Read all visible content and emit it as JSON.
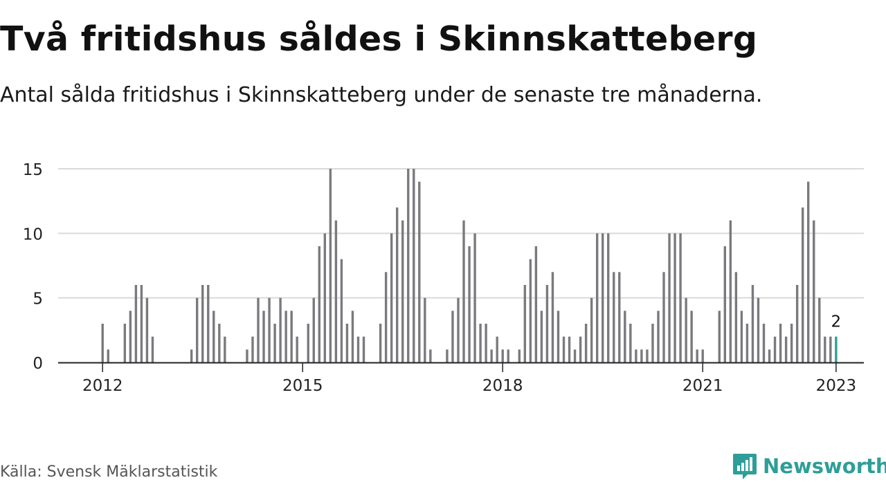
{
  "header": {
    "title": "Två fritidshus såldes i Skinnskatteberg",
    "subtitle": "Antal sålda fritidshus i Skinnskatteberg under de senaste tre månaderna."
  },
  "footer": {
    "source": "Källa: Svensk Mäklarstatistik",
    "brand": "Newsworthy"
  },
  "colors": {
    "bar": "#7a7a7e",
    "highlight": "#2aa198",
    "grid": "#d9d9d9",
    "axis": "#222222",
    "brand": "#2e9e98"
  },
  "chart_data": {
    "type": "bar",
    "ylim": [
      0,
      15
    ],
    "yticks": [
      0,
      5,
      10,
      15
    ],
    "grid": true,
    "x_ticks": [
      {
        "label": "2012",
        "x": "2012-01"
      },
      {
        "label": "2015",
        "x": "2015-01"
      },
      {
        "label": "2018",
        "x": "2018-01"
      },
      {
        "label": "2021",
        "x": "2021-01"
      },
      {
        "label": "2023",
        "x": "2023-01"
      }
    ],
    "xlim": [
      "2011-05",
      "2023-06"
    ],
    "annotation": {
      "x": "2023-01",
      "label": "2"
    },
    "points": [
      {
        "x": "2012-01",
        "y": 3
      },
      {
        "x": "2012-02",
        "y": 1
      },
      {
        "x": "2012-05",
        "y": 3
      },
      {
        "x": "2012-06",
        "y": 4
      },
      {
        "x": "2012-07",
        "y": 6
      },
      {
        "x": "2012-08",
        "y": 6
      },
      {
        "x": "2012-09",
        "y": 5
      },
      {
        "x": "2012-10",
        "y": 2
      },
      {
        "x": "2013-05",
        "y": 1
      },
      {
        "x": "2013-06",
        "y": 5
      },
      {
        "x": "2013-07",
        "y": 6
      },
      {
        "x": "2013-08",
        "y": 6
      },
      {
        "x": "2013-09",
        "y": 4
      },
      {
        "x": "2013-10",
        "y": 3
      },
      {
        "x": "2013-11",
        "y": 2
      },
      {
        "x": "2014-03",
        "y": 1
      },
      {
        "x": "2014-04",
        "y": 2
      },
      {
        "x": "2014-05",
        "y": 5
      },
      {
        "x": "2014-06",
        "y": 4
      },
      {
        "x": "2014-07",
        "y": 5
      },
      {
        "x": "2014-08",
        "y": 3
      },
      {
        "x": "2014-09",
        "y": 5
      },
      {
        "x": "2014-10",
        "y": 4
      },
      {
        "x": "2014-11",
        "y": 4
      },
      {
        "x": "2014-12",
        "y": 2
      },
      {
        "x": "2015-02",
        "y": 3
      },
      {
        "x": "2015-03",
        "y": 5
      },
      {
        "x": "2015-04",
        "y": 9
      },
      {
        "x": "2015-05",
        "y": 10
      },
      {
        "x": "2015-06",
        "y": 15
      },
      {
        "x": "2015-07",
        "y": 11
      },
      {
        "x": "2015-08",
        "y": 8
      },
      {
        "x": "2015-09",
        "y": 3
      },
      {
        "x": "2015-10",
        "y": 4
      },
      {
        "x": "2015-11",
        "y": 2
      },
      {
        "x": "2015-12",
        "y": 2
      },
      {
        "x": "2016-03",
        "y": 3
      },
      {
        "x": "2016-04",
        "y": 7
      },
      {
        "x": "2016-05",
        "y": 10
      },
      {
        "x": "2016-06",
        "y": 12
      },
      {
        "x": "2016-07",
        "y": 11
      },
      {
        "x": "2016-08",
        "y": 15
      },
      {
        "x": "2016-09",
        "y": 15
      },
      {
        "x": "2016-10",
        "y": 14
      },
      {
        "x": "2016-11",
        "y": 5
      },
      {
        "x": "2016-12",
        "y": 1
      },
      {
        "x": "2017-03",
        "y": 1
      },
      {
        "x": "2017-04",
        "y": 4
      },
      {
        "x": "2017-05",
        "y": 5
      },
      {
        "x": "2017-06",
        "y": 11
      },
      {
        "x": "2017-07",
        "y": 9
      },
      {
        "x": "2017-08",
        "y": 10
      },
      {
        "x": "2017-09",
        "y": 3
      },
      {
        "x": "2017-10",
        "y": 3
      },
      {
        "x": "2017-11",
        "y": 1
      },
      {
        "x": "2017-12",
        "y": 2
      },
      {
        "x": "2018-01",
        "y": 1
      },
      {
        "x": "2018-02",
        "y": 1
      },
      {
        "x": "2018-04",
        "y": 1
      },
      {
        "x": "2018-05",
        "y": 6
      },
      {
        "x": "2018-06",
        "y": 8
      },
      {
        "x": "2018-07",
        "y": 9
      },
      {
        "x": "2018-08",
        "y": 4
      },
      {
        "x": "2018-09",
        "y": 6
      },
      {
        "x": "2018-10",
        "y": 7
      },
      {
        "x": "2018-11",
        "y": 4
      },
      {
        "x": "2018-12",
        "y": 2
      },
      {
        "x": "2019-01",
        "y": 2
      },
      {
        "x": "2019-02",
        "y": 1
      },
      {
        "x": "2019-03",
        "y": 2
      },
      {
        "x": "2019-04",
        "y": 3
      },
      {
        "x": "2019-05",
        "y": 5
      },
      {
        "x": "2019-06",
        "y": 10
      },
      {
        "x": "2019-07",
        "y": 10
      },
      {
        "x": "2019-08",
        "y": 10
      },
      {
        "x": "2019-09",
        "y": 7
      },
      {
        "x": "2019-10",
        "y": 7
      },
      {
        "x": "2019-11",
        "y": 4
      },
      {
        "x": "2019-12",
        "y": 3
      },
      {
        "x": "2020-01",
        "y": 1
      },
      {
        "x": "2020-02",
        "y": 1
      },
      {
        "x": "2020-03",
        "y": 1
      },
      {
        "x": "2020-04",
        "y": 3
      },
      {
        "x": "2020-05",
        "y": 4
      },
      {
        "x": "2020-06",
        "y": 7
      },
      {
        "x": "2020-07",
        "y": 10
      },
      {
        "x": "2020-08",
        "y": 10
      },
      {
        "x": "2020-09",
        "y": 10
      },
      {
        "x": "2020-10",
        "y": 5
      },
      {
        "x": "2020-11",
        "y": 4
      },
      {
        "x": "2020-12",
        "y": 1
      },
      {
        "x": "2021-01",
        "y": 1
      },
      {
        "x": "2021-04",
        "y": 4
      },
      {
        "x": "2021-05",
        "y": 9
      },
      {
        "x": "2021-06",
        "y": 11
      },
      {
        "x": "2021-07",
        "y": 7
      },
      {
        "x": "2021-08",
        "y": 4
      },
      {
        "x": "2021-09",
        "y": 3
      },
      {
        "x": "2021-10",
        "y": 6
      },
      {
        "x": "2021-11",
        "y": 5
      },
      {
        "x": "2021-12",
        "y": 3
      },
      {
        "x": "2022-01",
        "y": 1
      },
      {
        "x": "2022-02",
        "y": 2
      },
      {
        "x": "2022-03",
        "y": 3
      },
      {
        "x": "2022-04",
        "y": 2
      },
      {
        "x": "2022-05",
        "y": 3
      },
      {
        "x": "2022-06",
        "y": 6
      },
      {
        "x": "2022-07",
        "y": 12
      },
      {
        "x": "2022-08",
        "y": 14
      },
      {
        "x": "2022-09",
        "y": 11
      },
      {
        "x": "2022-10",
        "y": 5
      },
      {
        "x": "2022-11",
        "y": 2
      },
      {
        "x": "2022-12",
        "y": 2
      },
      {
        "x": "2023-01",
        "y": 2
      }
    ]
  }
}
